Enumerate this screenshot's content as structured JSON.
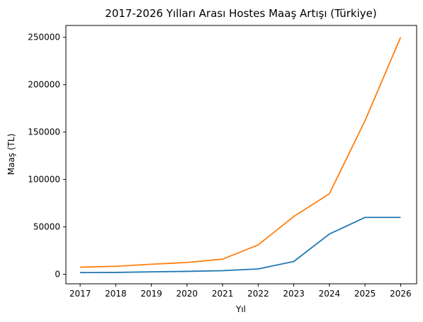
{
  "chart_data": {
    "type": "line",
    "title": "2017-2026 Yılları Arası Hostes Maaş Artışı (Türkiye)",
    "xlabel": "Yıl",
    "ylabel": "Maaş (TL)",
    "x": [
      2017,
      2018,
      2019,
      2020,
      2021,
      2022,
      2023,
      2024,
      2025,
      2026
    ],
    "x_tick_labels": [
      "2017",
      "2018",
      "2019",
      "2020",
      "2021",
      "2022",
      "2023",
      "2024",
      "2025",
      "2026"
    ],
    "y_ticks": [
      0,
      50000,
      100000,
      150000,
      200000,
      250000
    ],
    "y_tick_labels": [
      "0",
      "50000",
      "100000",
      "150000",
      "200000",
      "250000"
    ],
    "xlim": [
      2016.6,
      2026.45
    ],
    "ylim": [
      -10000,
      262500
    ],
    "grid": false,
    "series": [
      {
        "color": "#1f77b4",
        "values": [
          1800,
          2000,
          2600,
          3100,
          3800,
          5700,
          13500,
          42500,
          60000,
          60000
        ]
      },
      {
        "color": "#ff7f0e",
        "values": [
          7500,
          8500,
          10600,
          12500,
          16000,
          31000,
          61000,
          85000,
          162000,
          250000
        ]
      }
    ]
  }
}
